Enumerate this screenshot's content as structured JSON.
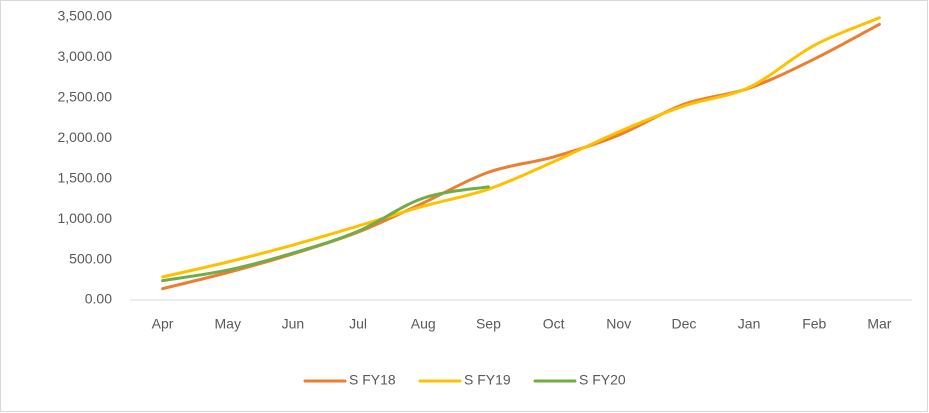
{
  "chart_data": {
    "type": "line",
    "categories": [
      "Apr",
      "May",
      "Jun",
      "Jul",
      "Aug",
      "Sep",
      "Oct",
      "Nov",
      "Dec",
      "Jan",
      "Feb",
      "Mar"
    ],
    "series": [
      {
        "name": "S FY18",
        "color": "#ed7d31",
        "values": [
          140,
          340,
          570,
          840,
          1200,
          1580,
          1770,
          2040,
          2420,
          2620,
          2980,
          3410
        ]
      },
      {
        "name": "S FY19",
        "color": "#ffc000",
        "values": [
          285,
          470,
          680,
          915,
          1160,
          1370,
          1710,
          2080,
          2400,
          2630,
          3150,
          3490
        ]
      },
      {
        "name": "S FY20",
        "color": "#70ad47",
        "values": [
          240,
          370,
          580,
          850,
          1260,
          1400,
          null,
          null,
          null,
          null,
          null,
          null
        ]
      }
    ],
    "ylim": [
      0,
      3500
    ],
    "yticks": [
      {
        "value": 0,
        "label": "0.00"
      },
      {
        "value": 500,
        "label": "500.00"
      },
      {
        "value": 1000,
        "label": "1,000.00"
      },
      {
        "value": 1500,
        "label": "1,500.00"
      },
      {
        "value": 2000,
        "label": "2,000.00"
      },
      {
        "value": 2500,
        "label": "2,500.00"
      },
      {
        "value": 3000,
        "label": "3,000.00"
      },
      {
        "value": 3500,
        "label": "3,500.00"
      }
    ],
    "grid": false,
    "legend": "bottom"
  }
}
